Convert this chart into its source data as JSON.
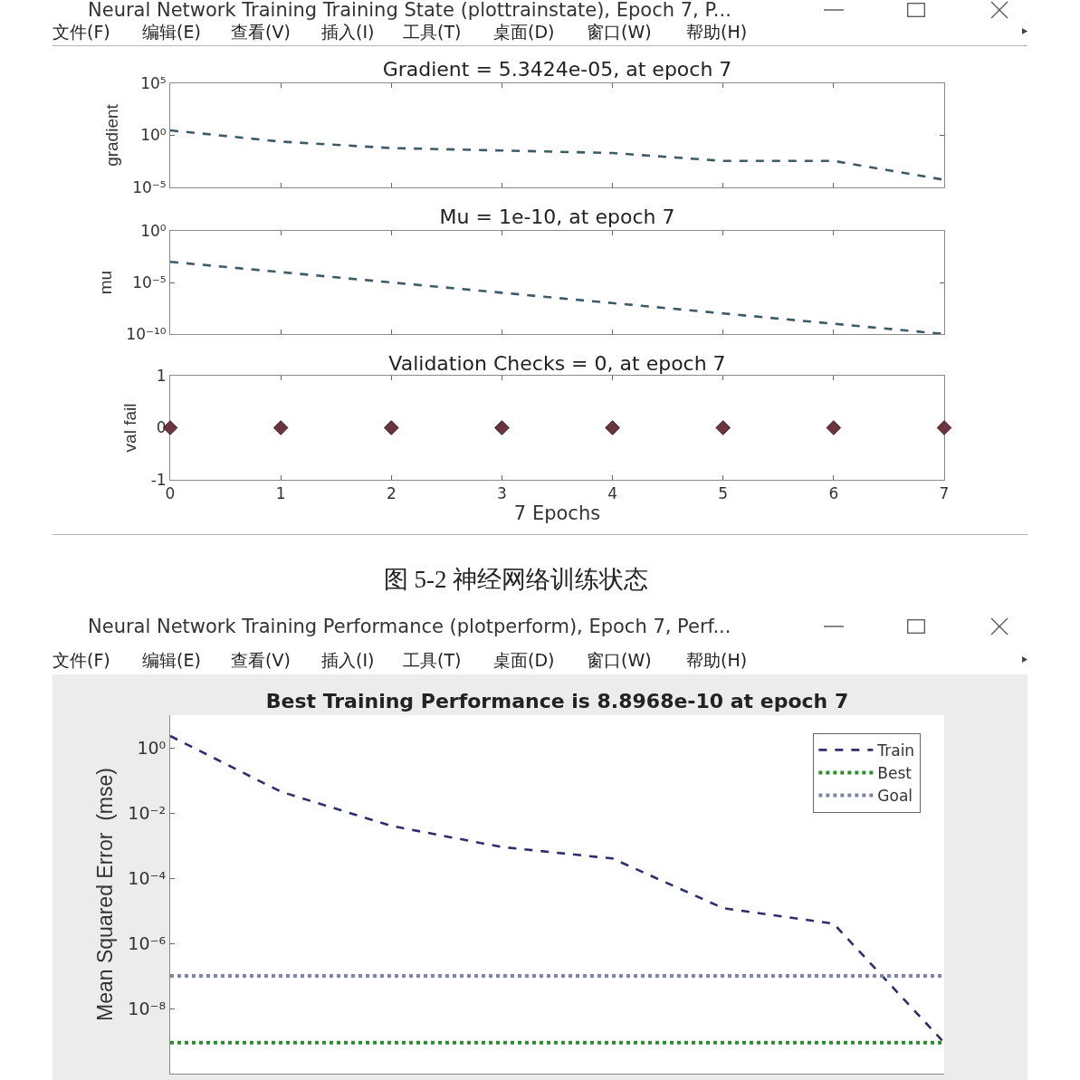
{
  "chart_data": [
    {
      "type": "line",
      "title": "Gradient = 5.3424e-05, at epoch 7",
      "ylabel": "gradient",
      "x": [
        0,
        1,
        2,
        3,
        4,
        5,
        6,
        7
      ],
      "values": [
        3,
        0.25,
        0.06,
        0.035,
        0.02,
        0.0035,
        0.0035,
        5.3424e-05
      ],
      "color": "#3b5b66",
      "line_style": "dashed",
      "log": "y",
      "xlim": [
        0,
        7
      ],
      "xticks": [
        0,
        1,
        2,
        3,
        4,
        5,
        6,
        7
      ],
      "ylim": [
        1e-05,
        100000
      ],
      "yticks": [
        {
          "value": 100000,
          "label": "10⁵"
        },
        {
          "value": 1,
          "label": "10⁰"
        },
        {
          "value": 1e-05,
          "label": "10⁻⁵"
        }
      ],
      "tick_labels": "y",
      "annotations": [
        "Neural Network Training Training State (plottrainstate), Epoch 7, P...",
        "文件(F)",
        "编辑(E)",
        "查看(V)",
        "插入(I)",
        "工具(T)",
        "桌面(D)",
        "窗口(W)",
        "帮助(H)"
      ]
    },
    {
      "type": "line",
      "title": "Mu = 1e-10, at epoch 7",
      "ylabel": "mu",
      "x": [
        0,
        1,
        2,
        3,
        4,
        5,
        6,
        7
      ],
      "values": [
        0.001,
        0.0001,
        1e-05,
        1e-06,
        1e-07,
        1e-08,
        1e-09,
        1e-10
      ],
      "color": "#3b5b66",
      "line_style": "dashed",
      "log": "y",
      "xlim": [
        0,
        7
      ],
      "xticks": [
        0,
        1,
        2,
        3,
        4,
        5,
        6,
        7
      ],
      "ylim": [
        1e-10,
        1
      ],
      "yticks": [
        {
          "value": 1,
          "label": "10⁰"
        },
        {
          "value": 1e-05,
          "label": "10⁻⁵"
        },
        {
          "value": 1e-10,
          "label": "10⁻¹⁰"
        }
      ],
      "tick_labels": "y"
    },
    {
      "type": "scatter",
      "title": "Validation Checks = 0, at epoch 7",
      "xlabel": "7 Epochs",
      "ylabel": "val fail",
      "x": [
        0,
        1,
        2,
        3,
        4,
        5,
        6,
        7
      ],
      "values": [
        0,
        0,
        0,
        0,
        0,
        0,
        0,
        0
      ],
      "color": "#6b3440",
      "marker": "diamond",
      "xlim": [
        0,
        7
      ],
      "xticks": [
        0,
        1,
        2,
        3,
        4,
        5,
        6,
        7
      ],
      "ylim": [
        -1,
        1
      ],
      "yticks": [
        -1,
        0,
        1
      ],
      "annotations": [
        "图 5-2 神经网络训练状态"
      ]
    },
    {
      "type": "line",
      "title": "Best Training Performance is 8.8968e-10 at epoch 7",
      "ylabel": "Mean Squared Error  (mse)",
      "x": [
        0,
        1,
        2,
        3,
        4,
        5,
        6,
        7
      ],
      "series": [
        {
          "name": "Train",
          "color": "#2b2f6e",
          "line_style": "dashed",
          "values": [
            2.3,
            0.045,
            0.004,
            0.0009,
            0.0004,
            1.2e-05,
            4e-06,
            8.8968e-10
          ]
        }
      ],
      "ref_lines": [
        {
          "axis": "y",
          "value": 8.8968e-10,
          "label": "Best",
          "color": "#2e8b2e",
          "line_style": "dotted"
        },
        {
          "axis": "y",
          "value": 1e-07,
          "label": "Goal",
          "color": "#7d86a0",
          "line_style": "dotted"
        }
      ],
      "log": "y",
      "xlim": [
        0,
        7
      ],
      "ylim": [
        1e-10,
        10
      ],
      "yticks": [
        {
          "value": 1,
          "label": "10⁰"
        },
        {
          "value": 0.01,
          "label": "10⁻²"
        },
        {
          "value": 0.0001,
          "label": "10⁻⁴"
        },
        {
          "value": 1e-06,
          "label": "10⁻⁶"
        },
        {
          "value": 1e-08,
          "label": "10⁻⁸"
        }
      ],
      "tick_labels": "y",
      "legend": "top right",
      "annotations": [
        "Neural Network Training Performance (plotperform), Epoch 7, Perf...",
        "文件(F)",
        "编辑(E)",
        "查看(V)",
        "插入(I)",
        "工具(T)",
        "桌面(D)",
        "窗口(W)",
        "帮助(H)"
      ]
    }
  ]
}
